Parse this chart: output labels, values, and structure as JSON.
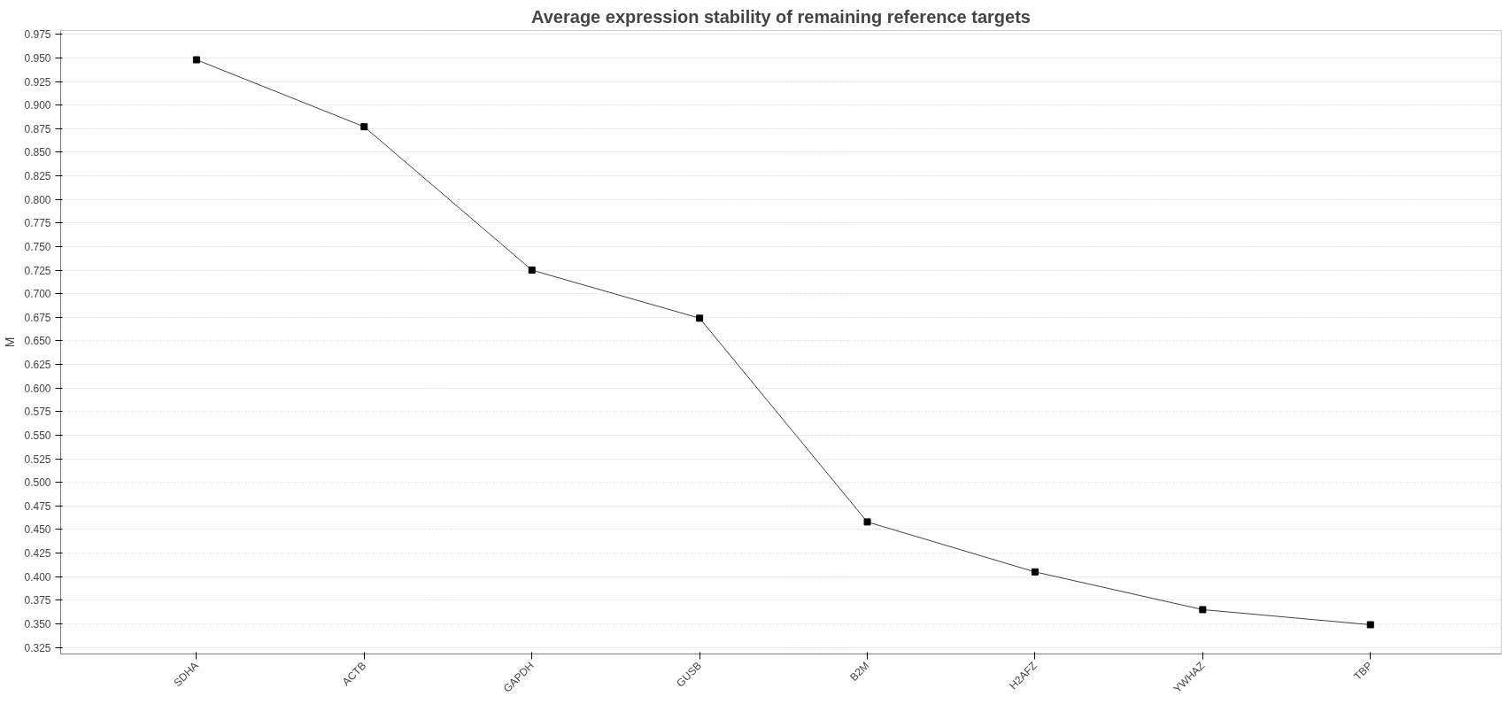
{
  "chart_data": {
    "type": "line",
    "title": "Average expression stability of remaining reference targets",
    "ylabel": "M",
    "categories": [
      "SDHA",
      "ACTB",
      "GAPDH",
      "GUSB",
      "B2M",
      "H2AFZ",
      "YWHAZ",
      "TBP"
    ],
    "series": [
      {
        "color": "#404040",
        "values": [
          0.948,
          0.877,
          0.725,
          0.674,
          0.458,
          0.405,
          0.365,
          0.349
        ]
      }
    ],
    "ylim": [
      0.318,
      0.979
    ],
    "yticks": [
      {
        "value": 0.325,
        "label": "0.325"
      },
      {
        "value": 0.35,
        "label": "0.350"
      },
      {
        "value": 0.375,
        "label": "0.375"
      },
      {
        "value": 0.4,
        "label": "0.400"
      },
      {
        "value": 0.425,
        "label": "0.425"
      },
      {
        "value": 0.45,
        "label": "0.450"
      },
      {
        "value": 0.475,
        "label": "0.475"
      },
      {
        "value": 0.5,
        "label": "0.500"
      },
      {
        "value": 0.525,
        "label": "0.525"
      },
      {
        "value": 0.55,
        "label": "0.550"
      },
      {
        "value": 0.575,
        "label": "0.575"
      },
      {
        "value": 0.6,
        "label": "0.600"
      },
      {
        "value": 0.625,
        "label": "0.625"
      },
      {
        "value": 0.65,
        "label": "0.650"
      },
      {
        "value": 0.675,
        "label": "0.675"
      },
      {
        "value": 0.7,
        "label": "0.700"
      },
      {
        "value": 0.725,
        "label": "0.725"
      },
      {
        "value": 0.75,
        "label": "0.750"
      },
      {
        "value": 0.775,
        "label": "0.775"
      },
      {
        "value": 0.8,
        "label": "0.800"
      },
      {
        "value": 0.825,
        "label": "0.825"
      },
      {
        "value": 0.85,
        "label": "0.850"
      },
      {
        "value": 0.875,
        "label": "0.875"
      },
      {
        "value": 0.9,
        "label": "0.900"
      },
      {
        "value": 0.925,
        "label": "0.925"
      },
      {
        "value": 0.95,
        "label": "0.950"
      },
      {
        "value": 0.975,
        "label": "0.975"
      }
    ],
    "grid": "y",
    "marker": "square",
    "line_style": "solid"
  }
}
